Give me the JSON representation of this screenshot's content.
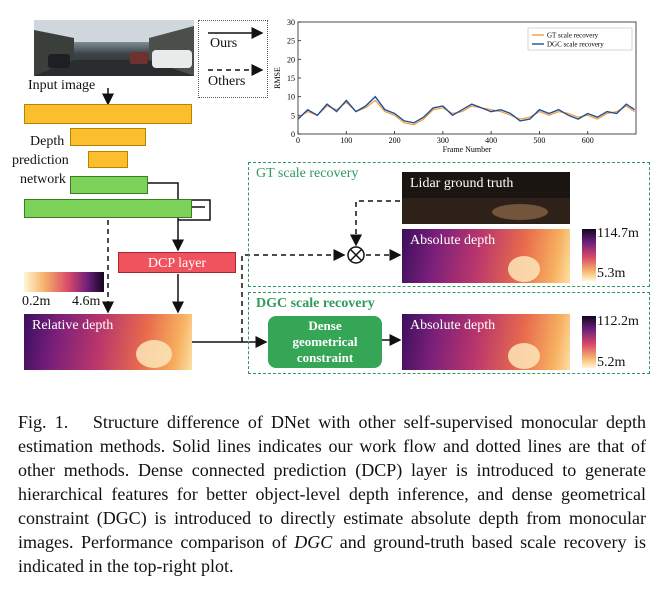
{
  "diagram": {
    "input_image_label": "Input image",
    "depth_network_label": [
      "Depth",
      "prediction",
      "network"
    ],
    "legend": {
      "ours": "Ours",
      "others": "Others"
    },
    "dcp_layer": "DCP layer",
    "relative_depth": {
      "label": "Relative depth",
      "min": "0.2m",
      "max": "4.6m"
    },
    "gt_group": {
      "title": "GT scale recovery",
      "lidar_label": "Lidar ground truth",
      "abs_label": "Absolute depth",
      "max": "114.7m",
      "min": "5.3m"
    },
    "dgc_group": {
      "title": "DGC scale recovery",
      "block": [
        "Dense",
        "geometrical",
        "constraint"
      ],
      "abs_label": "Absolute depth",
      "max": "112.2m",
      "min": "5.2m"
    }
  },
  "chart_data": {
    "type": "line",
    "xlabel": "Frame Number",
    "ylabel": "RMSE",
    "xlim": [
      0,
      700
    ],
    "ylim": [
      0,
      30
    ],
    "xticks": [
      0,
      100,
      200,
      300,
      400,
      500,
      600
    ],
    "yticks": [
      0,
      5,
      10,
      15,
      20,
      25,
      30
    ],
    "legend": "top-right",
    "x": [
      0,
      20,
      40,
      60,
      80,
      100,
      120,
      140,
      160,
      180,
      200,
      220,
      240,
      260,
      280,
      300,
      320,
      340,
      360,
      380,
      400,
      420,
      440,
      460,
      480,
      500,
      520,
      540,
      560,
      580,
      600,
      620,
      640,
      660,
      680,
      697
    ],
    "series": [
      {
        "name": "GT scale recovery",
        "color": "#f39c34",
        "values": [
          4.5,
          6,
          5,
          7.5,
          6.5,
          8.5,
          6,
          7,
          9,
          6,
          5,
          3,
          2.5,
          4,
          6.5,
          7,
          5.5,
          6,
          7.5,
          7,
          6.5,
          6,
          5,
          4,
          4.5,
          6,
          5,
          6,
          5.5,
          4.5,
          5,
          4,
          5.5,
          6,
          7.5,
          6
        ]
      },
      {
        "name": "DGC scale recovery",
        "color": "#1f4e9a",
        "values": [
          4,
          6.5,
          5,
          8,
          6,
          9,
          6,
          7.5,
          10,
          6.5,
          5.5,
          3.5,
          3,
          4.5,
          7,
          7.5,
          5,
          6.5,
          8,
          7,
          6,
          6.5,
          5.5,
          3.5,
          4,
          6.5,
          5.5,
          6.5,
          5,
          4,
          5.5,
          4.5,
          6,
          5.5,
          8,
          6.5
        ]
      }
    ]
  },
  "caption": {
    "fig": "Fig. 1.",
    "p1": "Structure difference of DNet with other self-supervised monocular depth estimation methods. Solid lines indicates our work flow and dotted lines are that of other methods. Dense connected prediction (DCP) layer is introduced to generate hierarchical features for better object-level depth inference, and dense geometrical constraint (DGC) is introduced to directly estimate absolute depth from monocular images. Performance comparison of ",
    "em": "DGC",
    "p2": " and ground-truth based scale recovery is indicated in the top-right plot."
  }
}
